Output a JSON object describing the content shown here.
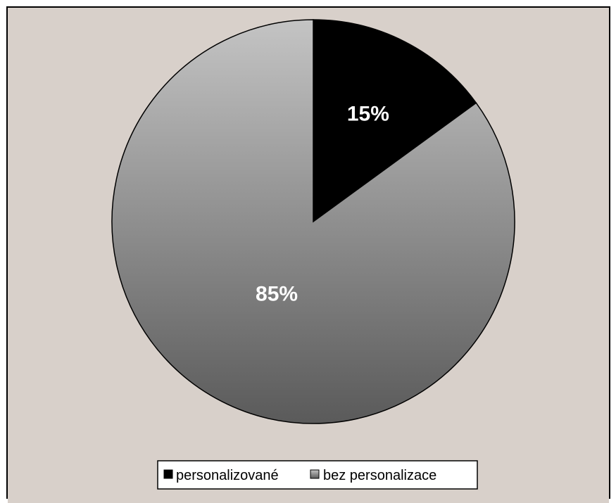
{
  "chart_data": {
    "type": "pie",
    "title": "",
    "categories": [
      "personalizované",
      "bez personalizace"
    ],
    "values": [
      15,
      85
    ],
    "data_labels": [
      "15%",
      "85%"
    ],
    "start_angle_deg": 0,
    "direction": "clockwise",
    "colors": {
      "background": "#d8d0ca",
      "border": "#000000",
      "slice_personalizovane": "#000000",
      "slice_bez_gradient_top": "#c4c4c4",
      "slice_bez_gradient_bottom": "#5a5a5a",
      "label_text": "#ffffff"
    },
    "legend": {
      "position": "bottom",
      "items": [
        {
          "label": "personalizované",
          "icon": "legend-swatch-black"
        },
        {
          "label": "bez personalizace",
          "icon": "legend-swatch-gray"
        }
      ]
    }
  }
}
